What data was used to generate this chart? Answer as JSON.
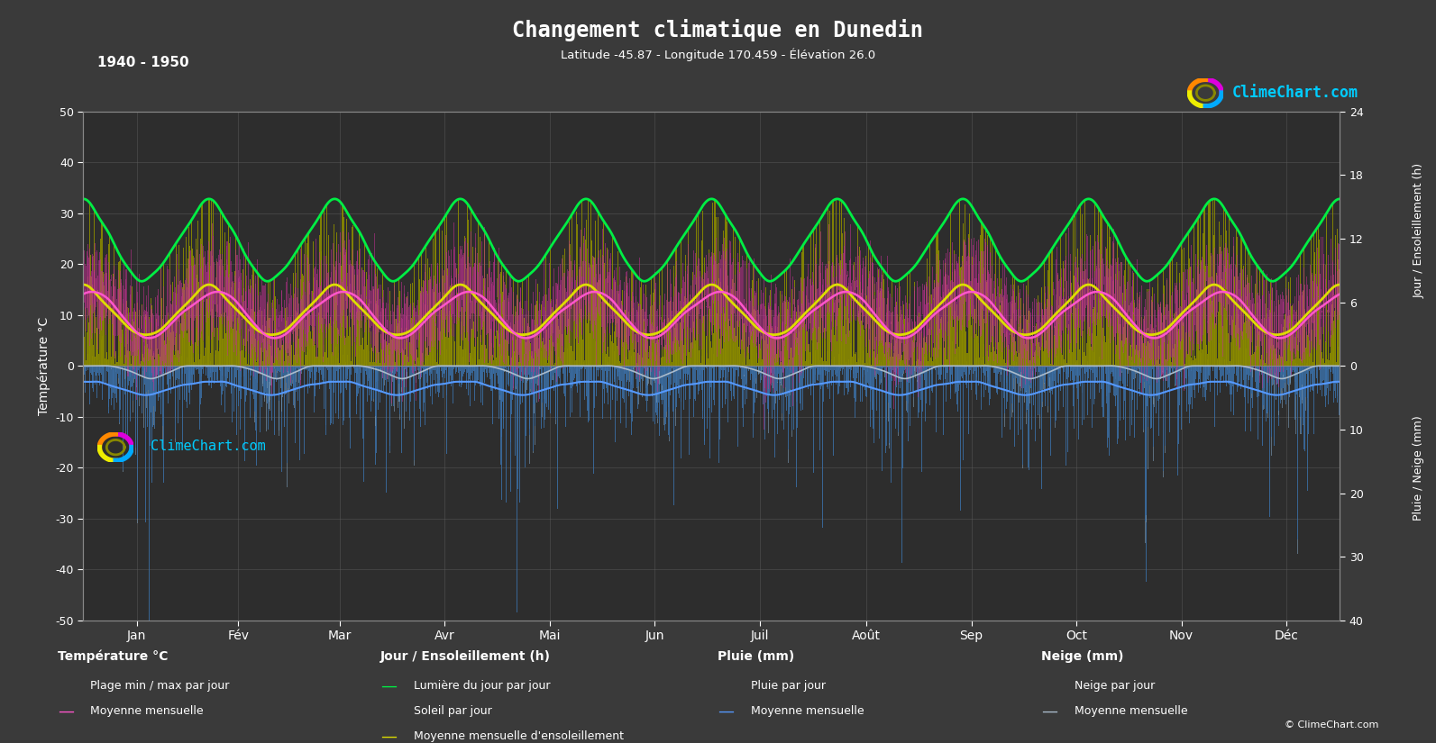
{
  "title": "Changement climatique en Dunedin",
  "subtitle": "Latitude -45.87 - Longitude 170.459 - Élévation 26.0",
  "period": "1940 - 1950",
  "bg_color": "#3a3a3a",
  "plot_bg_color": "#2d2d2d",
  "text_color": "#ffffff",
  "months": [
    "Jan",
    "Fév",
    "Mar",
    "Avr",
    "Mai",
    "Jun",
    "Juil",
    "Août",
    "Sep",
    "Oct",
    "Nov",
    "Déc"
  ],
  "grid_color": "#606060",
  "temp_ylim": [
    -50,
    50
  ],
  "temp_yticks": [
    -50,
    -40,
    -30,
    -20,
    -10,
    0,
    10,
    20,
    30,
    40,
    50
  ],
  "sun_yticks": [
    0,
    6,
    12,
    18,
    24
  ],
  "rain_yticks": [
    0,
    10,
    20,
    30,
    40
  ],
  "temp_mean_monthly": [
    14.5,
    14.3,
    13.0,
    10.5,
    8.0,
    6.0,
    5.5,
    6.5,
    8.5,
    10.5,
    12.0,
    13.5
  ],
  "temp_max_monthly": [
    20.0,
    20.0,
    18.5,
    16.0,
    13.0,
    10.5,
    10.0,
    11.0,
    13.5,
    15.5,
    17.0,
    18.5
  ],
  "temp_min_monthly": [
    10.0,
    10.0,
    8.5,
    6.5,
    4.0,
    2.0,
    1.5,
    2.5,
    4.5,
    6.5,
    8.0,
    9.5
  ],
  "sun_mean_monthly": [
    7.5,
    6.5,
    5.5,
    4.5,
    3.5,
    3.0,
    3.0,
    3.5,
    4.5,
    5.5,
    6.5,
    7.5
  ],
  "daylight_monthly": [
    15.5,
    14.0,
    12.5,
    10.5,
    9.0,
    8.0,
    8.5,
    9.5,
    11.0,
    12.5,
    14.0,
    15.5
  ],
  "rain_mean_monthly": [
    2.5,
    2.5,
    3.0,
    3.5,
    4.0,
    4.5,
    4.5,
    4.0,
    3.5,
    3.0,
    2.8,
    2.5
  ],
  "snow_mean_monthly": [
    0.0,
    0.0,
    0.0,
    0.3,
    0.8,
    1.5,
    2.0,
    1.5,
    0.8,
    0.1,
    0.0,
    0.0
  ],
  "sun_scale": 0.520833,
  "rain_scale": -0.8,
  "years": 10,
  "days_per_year": 365
}
